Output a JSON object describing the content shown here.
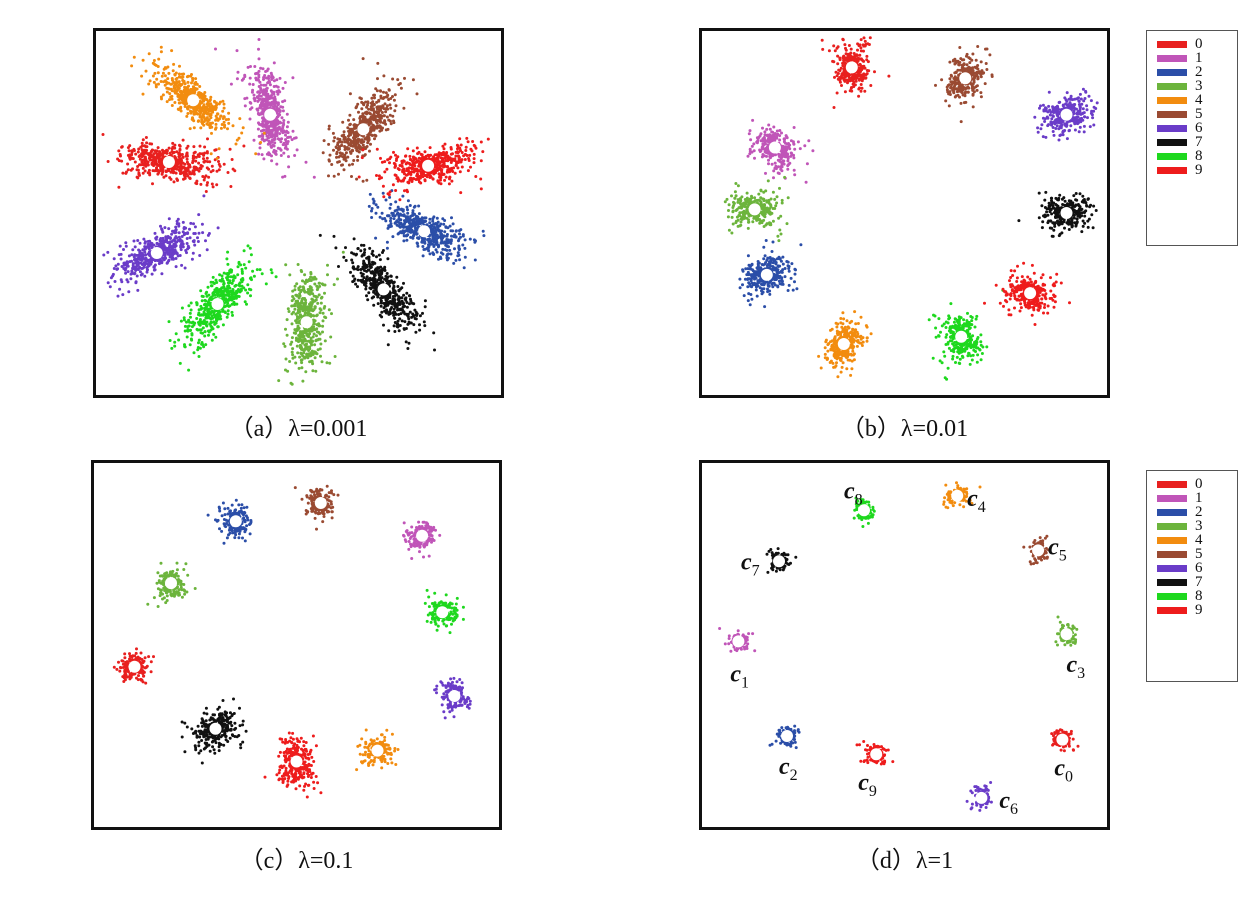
{
  "chart_data": [
    {
      "type": "scatter",
      "panel": "a",
      "caption": "（a）λ=0.001",
      "clusters": [
        {
          "label": "0",
          "x": 0.18,
          "y": 0.36,
          "angle": 8,
          "size": "large"
        },
        {
          "label": "1",
          "x": 0.43,
          "y": 0.23,
          "angle": 78,
          "size": "large"
        },
        {
          "label": "2",
          "x": 0.81,
          "y": 0.55,
          "angle": 25,
          "size": "large"
        },
        {
          "label": "3",
          "x": 0.52,
          "y": 0.8,
          "angle": 92,
          "size": "large"
        },
        {
          "label": "4",
          "x": 0.24,
          "y": 0.19,
          "angle": 40,
          "size": "large"
        },
        {
          "label": "5",
          "x": 0.66,
          "y": 0.27,
          "angle": -55,
          "size": "large"
        },
        {
          "label": "6",
          "x": 0.15,
          "y": 0.61,
          "angle": -25,
          "size": "large"
        },
        {
          "label": "7",
          "x": 0.71,
          "y": 0.71,
          "angle": 52,
          "size": "large"
        },
        {
          "label": "8",
          "x": 0.3,
          "y": 0.75,
          "angle": -50,
          "size": "large"
        },
        {
          "label": "9",
          "x": 0.82,
          "y": 0.37,
          "angle": -10,
          "size": "large"
        }
      ]
    },
    {
      "type": "scatter",
      "panel": "b",
      "caption": "（b）λ=0.01",
      "clusters": [
        {
          "label": "0",
          "x": 0.37,
          "y": 0.1,
          "angle": 80,
          "size": "medium"
        },
        {
          "label": "1",
          "x": 0.18,
          "y": 0.32,
          "angle": 35,
          "size": "medium"
        },
        {
          "label": "2",
          "x": 0.16,
          "y": 0.67,
          "angle": -30,
          "size": "medium"
        },
        {
          "label": "3",
          "x": 0.13,
          "y": 0.49,
          "angle": 0,
          "size": "medium"
        },
        {
          "label": "4",
          "x": 0.35,
          "y": 0.86,
          "angle": -60,
          "size": "medium"
        },
        {
          "label": "5",
          "x": 0.65,
          "y": 0.13,
          "angle": -60,
          "size": "medium"
        },
        {
          "label": "6",
          "x": 0.9,
          "y": 0.23,
          "angle": -15,
          "size": "medium"
        },
        {
          "label": "7",
          "x": 0.9,
          "y": 0.5,
          "angle": 0,
          "size": "medium"
        },
        {
          "label": "8",
          "x": 0.64,
          "y": 0.84,
          "angle": 75,
          "size": "medium"
        },
        {
          "label": "9",
          "x": 0.81,
          "y": 0.72,
          "angle": 15,
          "size": "medium"
        }
      ]
    },
    {
      "type": "scatter",
      "panel": "c",
      "caption": "（c）λ=0.1",
      "clusters": [
        {
          "label": "0",
          "x": 0.1,
          "y": 0.56,
          "angle": 0,
          "size": "small"
        },
        {
          "label": "1",
          "x": 0.81,
          "y": 0.2,
          "angle": -30,
          "size": "small"
        },
        {
          "label": "2",
          "x": 0.35,
          "y": 0.16,
          "angle": 60,
          "size": "small"
        },
        {
          "label": "3",
          "x": 0.19,
          "y": 0.33,
          "angle": 80,
          "size": "small"
        },
        {
          "label": "4",
          "x": 0.7,
          "y": 0.79,
          "angle": 0,
          "size": "small"
        },
        {
          "label": "5",
          "x": 0.56,
          "y": 0.11,
          "angle": 80,
          "size": "small"
        },
        {
          "label": "6",
          "x": 0.89,
          "y": 0.64,
          "angle": 70,
          "size": "small"
        },
        {
          "label": "7",
          "x": 0.3,
          "y": 0.73,
          "angle": -25,
          "size": "medium"
        },
        {
          "label": "8",
          "x": 0.86,
          "y": 0.41,
          "angle": 0,
          "size": "small"
        },
        {
          "label": "9",
          "x": 0.5,
          "y": 0.82,
          "angle": 90,
          "size": "medium"
        }
      ]
    },
    {
      "type": "scatter",
      "panel": "d",
      "caption": "（d）λ=1",
      "clusters": [
        {
          "label": "0",
          "x": 0.89,
          "y": 0.76,
          "angle": 90,
          "size": "tiny",
          "center_label": "c",
          "center_sub": "0"
        },
        {
          "label": "1",
          "x": 0.09,
          "y": 0.49,
          "angle": 90,
          "size": "tiny",
          "center_label": "c",
          "center_sub": "1"
        },
        {
          "label": "2",
          "x": 0.21,
          "y": 0.75,
          "angle": 90,
          "size": "tiny",
          "center_label": "c",
          "center_sub": "2"
        },
        {
          "label": "3",
          "x": 0.9,
          "y": 0.47,
          "angle": 0,
          "size": "tiny",
          "center_label": "c",
          "center_sub": "3"
        },
        {
          "label": "4",
          "x": 0.63,
          "y": 0.09,
          "angle": 90,
          "size": "tiny",
          "center_label": "c",
          "center_sub": "4"
        },
        {
          "label": "5",
          "x": 0.83,
          "y": 0.24,
          "angle": 0,
          "size": "tiny",
          "center_label": "c",
          "center_sub": "5"
        },
        {
          "label": "6",
          "x": 0.69,
          "y": 0.92,
          "angle": 0,
          "size": "tiny",
          "center_label": "c",
          "center_sub": "6"
        },
        {
          "label": "7",
          "x": 0.19,
          "y": 0.27,
          "angle": 90,
          "size": "tiny",
          "center_label": "c",
          "center_sub": "7"
        },
        {
          "label": "8",
          "x": 0.4,
          "y": 0.13,
          "angle": 0,
          "size": "tiny",
          "center_label": "c",
          "center_sub": "8"
        },
        {
          "label": "9",
          "x": 0.43,
          "y": 0.8,
          "angle": 90,
          "size": "tiny",
          "center_label": "c",
          "center_sub": "9"
        }
      ]
    }
  ],
  "legend": {
    "items": [
      {
        "label": "0",
        "color": "#e8201f"
      },
      {
        "label": "1",
        "color": "#c055b8"
      },
      {
        "label": "2",
        "color": "#2b4ea8"
      },
      {
        "label": "3",
        "color": "#6cb43c"
      },
      {
        "label": "4",
        "color": "#f28c0f"
      },
      {
        "label": "5",
        "color": "#9a4a32"
      },
      {
        "label": "6",
        "color": "#6a3cc8"
      },
      {
        "label": "7",
        "color": "#111111"
      },
      {
        "label": "8",
        "color": "#1ed81e"
      },
      {
        "label": "9",
        "color": "#ee1c1c"
      }
    ]
  }
}
